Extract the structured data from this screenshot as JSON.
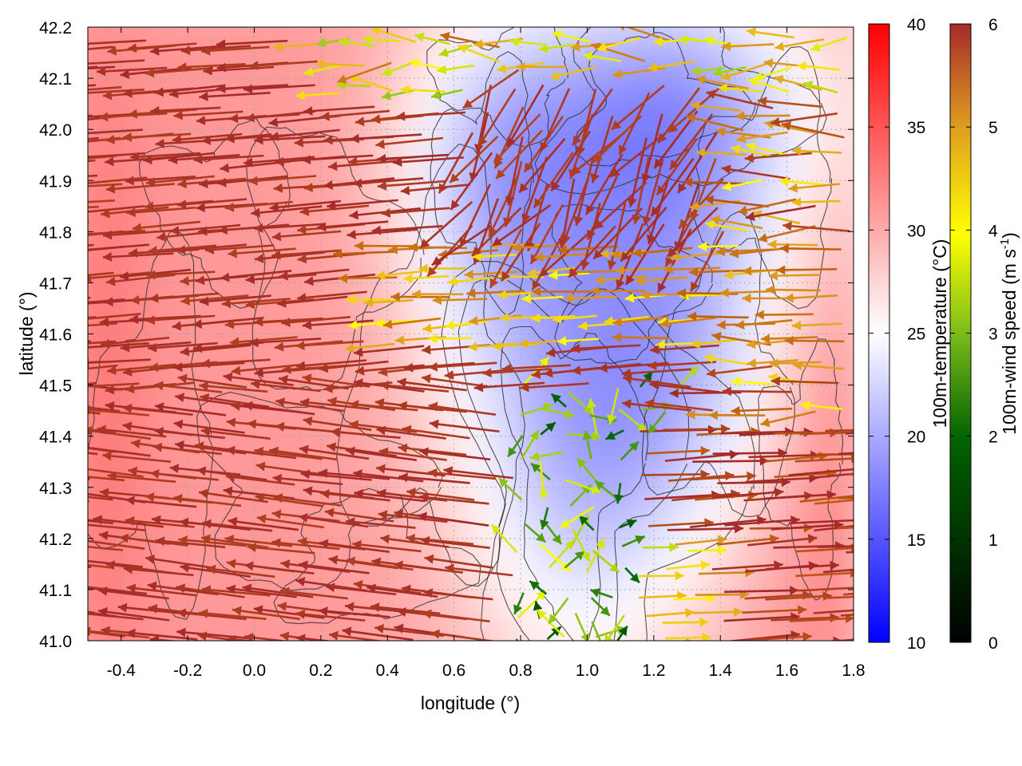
{
  "chart_data": {
    "type": "heatmap",
    "subtype": "wind vector field over temperature map",
    "xlabel": "longitude (°)",
    "ylabel": "latitude (°)",
    "xlim": [
      -0.5,
      1.8
    ],
    "ylim": [
      41.0,
      42.2
    ],
    "x_ticks": [
      "-0.4",
      "-0.2",
      "0.0",
      "0.2",
      "0.4",
      "0.6",
      "0.8",
      "1.0",
      "1.2",
      "1.4",
      "1.6",
      "1.8"
    ],
    "x_tick_values": [
      -0.4,
      -0.2,
      0.0,
      0.2,
      0.4,
      0.6,
      0.8,
      1.0,
      1.2,
      1.4,
      1.6,
      1.8
    ],
    "y_ticks": [
      "41.0",
      "41.1",
      "41.2",
      "41.3",
      "41.4",
      "41.5",
      "41.6",
      "41.7",
      "41.8",
      "41.9",
      "42.0",
      "42.1",
      "42.2"
    ],
    "y_tick_values": [
      41.0,
      41.1,
      41.2,
      41.3,
      41.4,
      41.5,
      41.6,
      41.7,
      41.8,
      41.9,
      42.0,
      42.1,
      42.2
    ],
    "grid": true,
    "temperature_colorbar": {
      "label": "100m-temperature (°C)",
      "range": [
        10,
        40
      ],
      "tick_labels": [
        "10",
        "15",
        "20",
        "25",
        "30",
        "35",
        "40"
      ],
      "tick_values": [
        10,
        15,
        20,
        25,
        30,
        35,
        40
      ],
      "colors": [
        "#0000ff",
        "#ffffff",
        "#ff0000"
      ]
    },
    "wind_colorbar": {
      "label_prefix": "100m-wind speed (m s",
      "label_exponent": "-1",
      "label_suffix": ")",
      "range": [
        0,
        6
      ],
      "tick_labels": [
        "0",
        "1",
        "2",
        "3",
        "4",
        "5",
        "6"
      ],
      "tick_values": [
        0,
        1,
        2,
        3,
        4,
        5,
        6
      ],
      "colors": [
        "#000000",
        "#006400",
        "#7cbc1a",
        "#ffff00",
        "#e0a020",
        "#c06010",
        "#a52a2a"
      ]
    },
    "temperature_regions": [
      {
        "region": "west of 0.5°",
        "temperature": 31
      },
      {
        "region": "0.6°–1.3° (valley)",
        "temperature": 22
      },
      {
        "region": "northeast 1.0°–1.6°, 41.9°–42.2°",
        "temperature": 19
      },
      {
        "region": "east of 1.6°",
        "temperature": 28
      }
    ],
    "wind_regimes": [
      {
        "region": "west of 0.6°",
        "direction": "westward",
        "speed": 6
      },
      {
        "region": "central band 41.6°–41.8°",
        "direction": "westward",
        "speed": 4
      },
      {
        "region": "valley 0.8°–1.3°",
        "direction": "variable",
        "speed": 2
      },
      {
        "region": "north 41.8°–42.1°, 0.7°–1.4°",
        "direction": "southwestward",
        "speed": 6
      },
      {
        "region": "southeast 1.2°–1.8°, 41.0°–41.4°",
        "direction": "eastward",
        "speed": 6
      }
    ]
  }
}
